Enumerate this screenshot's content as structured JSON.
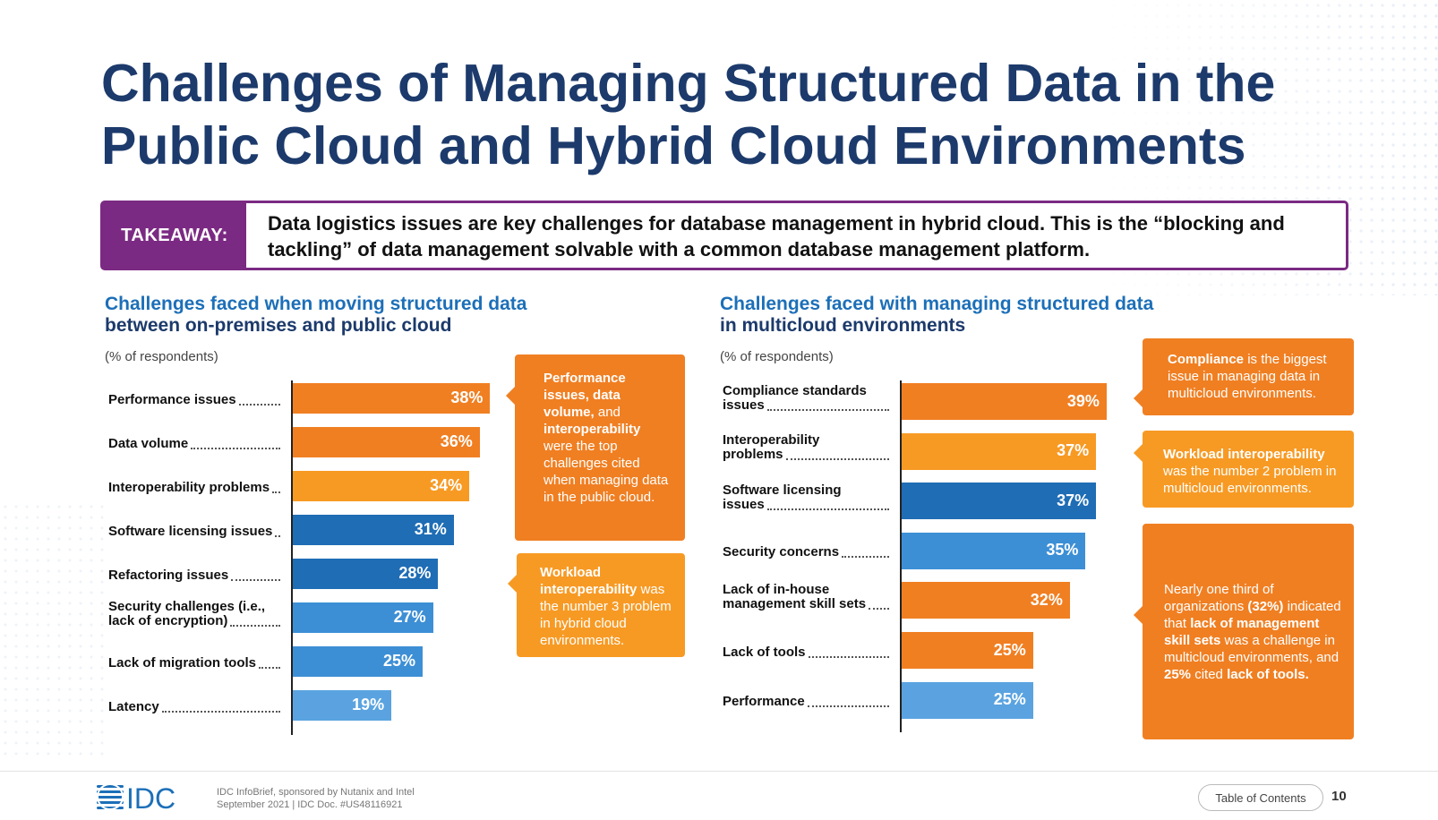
{
  "header": {
    "title": "Challenges of Managing Structured Data in the Public Cloud and Hybrid Cloud Environments"
  },
  "takeaway": {
    "label": "TAKEAWAY:",
    "text": "Data logistics issues are key challenges for database management in hybrid cloud. This is the “blocking and tackling” of data management solvable with a common database management platform."
  },
  "left_section": {
    "title_line1": "Challenges faced when moving structured data",
    "title_line2": "between on-premises and public cloud",
    "subtitle": "(% of respondents)"
  },
  "right_section": {
    "title_line1": "Challenges faced with managing structured data",
    "title_line2": "in multicloud environments",
    "subtitle": "(% of respondents)"
  },
  "chart_data": [
    {
      "type": "bar",
      "orientation": "horizontal",
      "categories": [
        "Performance issues",
        "Data volume",
        "Interoperability problems",
        "Software licensing issues",
        "Refactoring issues",
        "Security challenges (i.e., lack of encryption)",
        "Lack of migration tools",
        "Latency"
      ],
      "values": [
        38,
        36,
        34,
        31,
        28,
        27,
        25,
        19
      ],
      "value_labels": [
        "38%",
        "36%",
        "34%",
        "31%",
        "28%",
        "27%",
        "25%",
        "19%"
      ],
      "colors": [
        "#f07f22",
        "#f07f22",
        "#f79a24",
        "#1f6db5",
        "#1f6db5",
        "#3d8fd5",
        "#3d8fd5",
        "#5aa3e0"
      ]
    },
    {
      "type": "bar",
      "orientation": "horizontal",
      "categories": [
        "Compliance standards issues",
        "Interoperability problems",
        "Software licensing issues",
        "Security concerns",
        "Lack of in-house management skill sets",
        "Lack of tools",
        "Performance"
      ],
      "values": [
        39,
        37,
        37,
        35,
        32,
        25,
        25
      ],
      "value_labels": [
        "39%",
        "37%",
        "37%",
        "35%",
        "32%",
        "25%",
        "25%"
      ],
      "colors": [
        "#f07f22",
        "#f79a24",
        "#1f6db5",
        "#3d8fd5",
        "#f07f22",
        "#f07f22",
        "#5aa3e0"
      ]
    }
  ],
  "left_callouts": [
    {
      "color": "#f07f22",
      "parts": [
        {
          "b": true,
          "t": "Performance issues, data volume,"
        },
        {
          "b": false,
          "t": " and "
        },
        {
          "b": true,
          "t": "interoperability"
        },
        {
          "b": false,
          "t": " were the top challenges cited when managing data in the public cloud."
        }
      ]
    },
    {
      "color": "#f79a24",
      "parts": [
        {
          "b": true,
          "t": "Workload interoperability"
        },
        {
          "b": false,
          "t": " was the number 3 problem in hybrid cloud environments."
        }
      ]
    }
  ],
  "right_callouts": [
    {
      "color": "#f07f22",
      "parts": [
        {
          "b": true,
          "t": "Compliance"
        },
        {
          "b": false,
          "t": " is the biggest issue in managing data in multicloud environments."
        }
      ]
    },
    {
      "color": "#f79a24",
      "parts": [
        {
          "b": true,
          "t": "Workload interoperability"
        },
        {
          "b": false,
          "t": " was the number 2 problem in multicloud environments."
        }
      ]
    },
    {
      "color": "#f07f22",
      "parts": [
        {
          "b": false,
          "t": "Nearly one third of organizations "
        },
        {
          "b": true,
          "t": "(32%)"
        },
        {
          "b": false,
          "t": " indicated that "
        },
        {
          "b": true,
          "t": "lack of management skill sets"
        },
        {
          "b": false,
          "t": " was a challenge in multicloud environments, and "
        },
        {
          "b": true,
          "t": "25%"
        },
        {
          "b": false,
          "t": " cited "
        },
        {
          "b": true,
          "t": "lack of tools."
        }
      ]
    }
  ],
  "footer": {
    "logo_text": "IDC",
    "line1": "IDC InfoBrief, sponsored by Nutanix and Intel",
    "line2": "September 2021  |  IDC Doc. #US48116921",
    "toc_label": "Table of Contents",
    "page_number": "10"
  }
}
